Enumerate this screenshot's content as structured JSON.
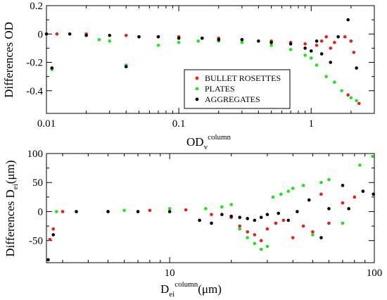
{
  "colors": {
    "bullet": "#e8201a",
    "plates": "#1ee61e",
    "aggregates": "#000000"
  },
  "chart_data": [
    {
      "type": "scatter",
      "xscale": "log",
      "xlim": [
        0.01,
        3.0
      ],
      "ylim": [
        -0.56,
        0.2
      ],
      "xticks": [
        0.01,
        0.1,
        1
      ],
      "xtick_labels": [
        "0.01",
        "0.1",
        "1"
      ],
      "yticks": [
        0.2,
        0,
        -0.2,
        -0.4
      ],
      "ytick_labels": [
        "0.2",
        "0",
        "-0.2",
        "-0.4"
      ],
      "ylabel": "Differences OD",
      "xlabel_main": "OD",
      "xlabel_sub": "v",
      "xlabel_sup": "column",
      "legend": {
        "position": "center-right",
        "entries": [
          "BULLET ROSETTES",
          "PLATES",
          "AGGREGATES"
        ]
      },
      "series": [
        {
          "name": "BULLET ROSETTES",
          "color_key": "bullet",
          "x": [
            0.012,
            0.02,
            0.04,
            0.07,
            0.1,
            0.15,
            0.2,
            0.3,
            0.5,
            0.7,
            0.9,
            1.1,
            1.2,
            1.3,
            1.4,
            1.5,
            1.8,
            1.9,
            2.0,
            2.1,
            2.3
          ],
          "y": [
            0.0,
            0.0,
            -0.01,
            -0.02,
            -0.02,
            -0.03,
            -0.03,
            -0.04,
            -0.05,
            -0.06,
            -0.07,
            -0.08,
            -0.05,
            -0.02,
            -0.1,
            -0.06,
            -0.02,
            -0.43,
            -0.05,
            -0.13,
            -0.49
          ]
        },
        {
          "name": "PLATES",
          "color_key": "plates",
          "x": [
            0.011,
            0.025,
            0.03,
            0.04,
            0.05,
            0.07,
            0.1,
            0.14,
            0.2,
            0.3,
            0.5,
            0.7,
            0.9,
            1.0,
            1.1,
            1.3,
            1.5,
            1.7,
            2.0,
            2.2
          ],
          "y": [
            -0.25,
            -0.04,
            -0.05,
            -0.22,
            -0.02,
            -0.08,
            -0.06,
            -0.05,
            -0.05,
            -0.06,
            -0.08,
            -0.11,
            -0.15,
            -0.17,
            -0.22,
            -0.3,
            -0.34,
            -0.4,
            -0.45,
            -0.47
          ]
        },
        {
          "name": "AGGREGATES",
          "color_key": "aggregates",
          "x": [
            0.01,
            0.011,
            0.015,
            0.02,
            0.03,
            0.04,
            0.05,
            0.07,
            0.1,
            0.15,
            0.2,
            0.3,
            0.4,
            0.5,
            0.7,
            0.9,
            1.0,
            1.1,
            1.2,
            1.4,
            1.6,
            1.9,
            2.2
          ],
          "y": [
            0.0,
            -0.24,
            0.0,
            -0.01,
            -0.01,
            -0.23,
            -0.02,
            -0.02,
            -0.03,
            -0.03,
            -0.04,
            -0.04,
            -0.05,
            -0.06,
            -0.07,
            -0.1,
            -0.12,
            -0.05,
            -0.14,
            -0.2,
            -0.02,
            0.1,
            -0.24
          ]
        }
      ]
    },
    {
      "type": "scatter",
      "xscale": "log",
      "xlim": [
        2.5,
        100
      ],
      "ylim": [
        -88,
        100
      ],
      "xticks": [
        10,
        100
      ],
      "xtick_labels": [
        "10",
        "100"
      ],
      "yticks": [
        100,
        50,
        0,
        -50
      ],
      "ytick_labels": [
        "100",
        "50",
        "0",
        "-50"
      ],
      "ylabel_main": "Differences D",
      "ylabel_sub": "ei",
      "ylabel_unit": "(μm)",
      "xlabel_main": "D",
      "xlabel_sub": "ei",
      "xlabel_sup": "column",
      "xlabel_unit": "(μm)",
      "series": [
        {
          "name": "BULLET ROSETTES",
          "color_key": "bullet",
          "x": [
            2.6,
            2.7,
            3.0,
            5,
            8,
            12,
            16,
            20,
            22,
            24,
            26,
            28,
            30,
            33,
            36,
            40,
            45,
            50,
            55,
            60,
            70,
            80
          ],
          "y": [
            -48,
            -30,
            0,
            0,
            2,
            3,
            -5,
            -10,
            -25,
            -35,
            -40,
            -50,
            -30,
            -20,
            -15,
            -45,
            -25,
            -35,
            30,
            -20,
            15,
            25
          ]
        },
        {
          "name": "PLATES",
          "color_key": "plates",
          "x": [
            2.8,
            6,
            10,
            15,
            18,
            20,
            22,
            24,
            26,
            28,
            30,
            32,
            35,
            38,
            40,
            45,
            50,
            55,
            60,
            70,
            85,
            98
          ],
          "y": [
            0,
            2,
            5,
            5,
            8,
            12,
            -30,
            -45,
            -55,
            -65,
            -60,
            25,
            30,
            35,
            40,
            45,
            -40,
            50,
            55,
            -20,
            80,
            95
          ]
        },
        {
          "name": "AGGREGATES",
          "color_key": "aggregates",
          "x": [
            2.55,
            2.7,
            3.5,
            5,
            7,
            10,
            14,
            16,
            18,
            20,
            22,
            24,
            26,
            28,
            30,
            34,
            38,
            42,
            48,
            55,
            60,
            70,
            75,
            88,
            99
          ],
          "y": [
            -83,
            -40,
            0,
            0,
            0,
            0,
            -15,
            -20,
            -5,
            -8,
            -10,
            -12,
            -15,
            -10,
            -5,
            -3,
            -15,
            0,
            20,
            -45,
            5,
            45,
            5,
            35,
            30
          ]
        }
      ]
    }
  ]
}
